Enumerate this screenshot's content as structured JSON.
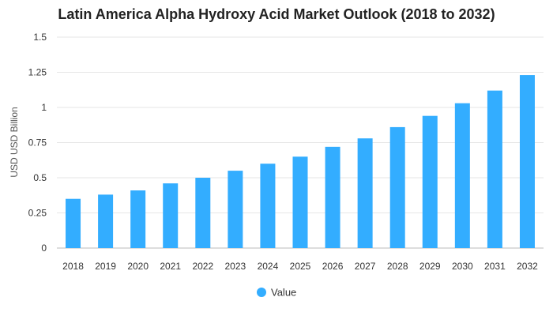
{
  "chart_data": {
    "type": "bar",
    "title": "Latin America Alpha Hydroxy Acid Market Outlook (2018 to 2032)",
    "ylabel": "USD USD Billion",
    "xlabel": "",
    "categories": [
      "2018",
      "2019",
      "2020",
      "2021",
      "2022",
      "2023",
      "2024",
      "2025",
      "2026",
      "2027",
      "2028",
      "2029",
      "2030",
      "2031",
      "2032"
    ],
    "series": [
      {
        "name": "Value",
        "color": "#33adff",
        "values": [
          0.35,
          0.38,
          0.41,
          0.46,
          0.5,
          0.55,
          0.6,
          0.65,
          0.72,
          0.78,
          0.86,
          0.94,
          1.03,
          1.12,
          1.23
        ]
      }
    ],
    "ylim": [
      0,
      1.5
    ],
    "yticks": [
      0,
      0.25,
      0.5,
      0.75,
      1,
      1.25,
      1.5
    ],
    "ytick_labels": [
      "0",
      "0.25",
      "0.5",
      "0.75",
      "1",
      "1.25",
      "1.5"
    ],
    "grid": true,
    "legend": "bottom-center"
  }
}
